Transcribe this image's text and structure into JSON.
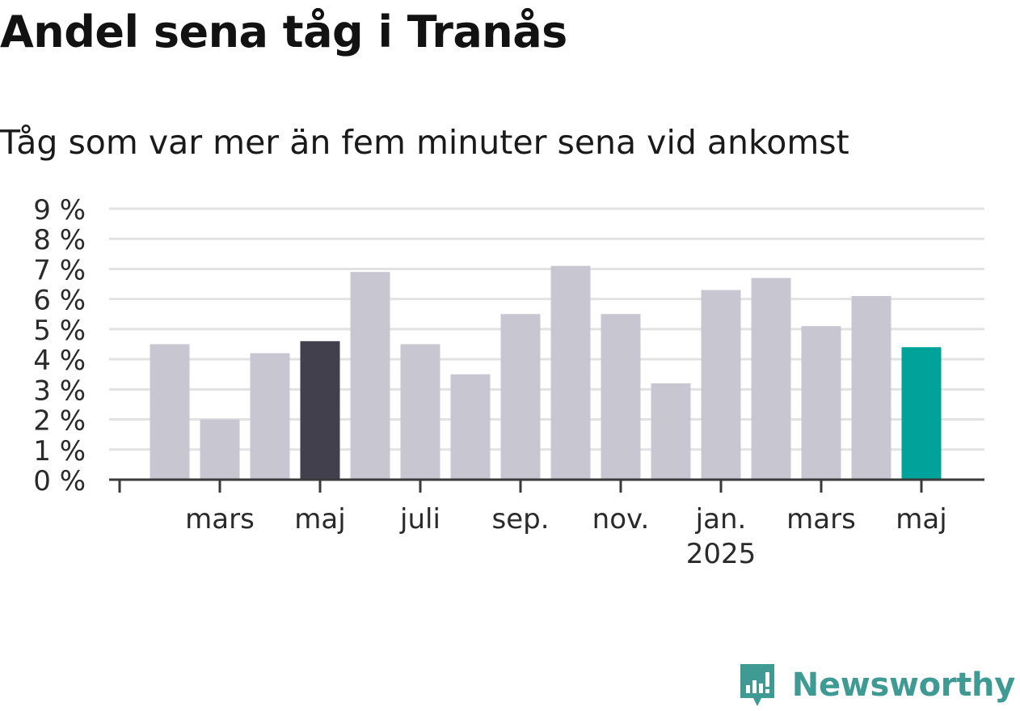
{
  "title": "Andel sena tåg i Tranås",
  "subtitle": "Tåg som var mer än fem minuter sena vid ankomst",
  "brand": {
    "name": "Newsworthy",
    "icon": "newsworthy-logo-icon"
  },
  "colors": {
    "bar": "#c8c7d1",
    "highlight_dark": "#42404d",
    "highlight_accent": "#00a39a",
    "grid": "#e2e2e2",
    "axis": "#3a3a3a",
    "brand": "#3f9a94"
  },
  "chart_data": {
    "type": "bar",
    "title": "Andel sena tåg i Tranås",
    "subtitle": "Tåg som var mer än fem minuter sena vid ankomst",
    "x": [
      "2024-02",
      "2024-03",
      "2024-04",
      "2024-05",
      "2024-06",
      "2024-07",
      "2024-08",
      "2024-09",
      "2024-10",
      "2024-11",
      "2024-12",
      "2025-01",
      "2025-02",
      "2025-03",
      "2025-04",
      "2025-05"
    ],
    "values": [
      4.5,
      2.0,
      4.2,
      4.6,
      6.9,
      4.5,
      3.5,
      5.5,
      7.1,
      5.5,
      3.2,
      6.3,
      6.7,
      5.1,
      6.1,
      4.4
    ],
    "highlight": {
      "2024-05": "dark",
      "2025-05": "accent"
    },
    "ylim": [
      0,
      9
    ],
    "yticks": [
      {
        "value": 0,
        "label": "0 %"
      },
      {
        "value": 1,
        "label": "1 %"
      },
      {
        "value": 2,
        "label": "2 %"
      },
      {
        "value": 3,
        "label": "3 %"
      },
      {
        "value": 4,
        "label": "4 %"
      },
      {
        "value": 5,
        "label": "5 %"
      },
      {
        "value": 6,
        "label": "6 %"
      },
      {
        "value": 7,
        "label": "7 %"
      },
      {
        "value": 8,
        "label": "8 %"
      },
      {
        "value": 9,
        "label": "9 %"
      }
    ],
    "xticks": [
      {
        "x": "2024-01",
        "label": ""
      },
      {
        "x": "2024-03",
        "label": "mars"
      },
      {
        "x": "2024-05",
        "label": "maj"
      },
      {
        "x": "2024-07",
        "label": "juli"
      },
      {
        "x": "2024-09",
        "label": "sep."
      },
      {
        "x": "2024-11",
        "label": "nov."
      },
      {
        "x": "2025-01",
        "label": "jan.",
        "sublabel": "2025"
      },
      {
        "x": "2025-03",
        "label": "mars"
      },
      {
        "x": "2025-05",
        "label": "maj"
      }
    ],
    "grid": true,
    "legend": "none"
  }
}
